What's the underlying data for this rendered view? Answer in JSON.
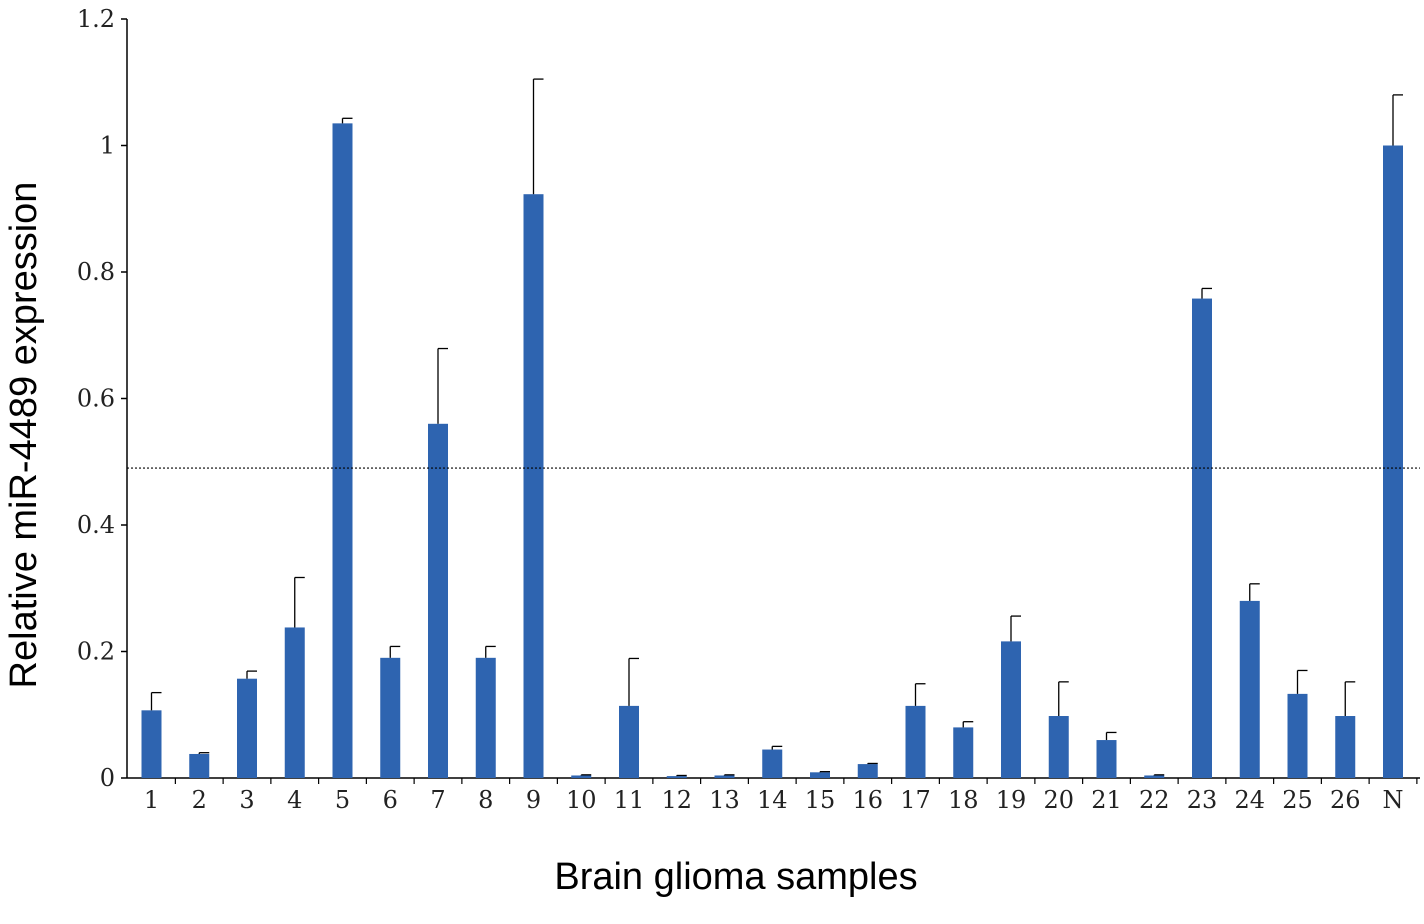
{
  "chart_data": {
    "type": "bar",
    "title": "",
    "xlabel": "Brain glioma samples",
    "ylabel": "Relative miR-4489 expression",
    "ylim": [
      0,
      1.2
    ],
    "yticks": [
      "0",
      "0.2",
      "0.4",
      "0.6",
      "0.8",
      "1",
      "1.2"
    ],
    "categories": [
      "1",
      "2",
      "3",
      "4",
      "5",
      "6",
      "7",
      "8",
      "9",
      "10",
      "11",
      "12",
      "13",
      "14",
      "15",
      "16",
      "17",
      "18",
      "19",
      "20",
      "21",
      "22",
      "23",
      "24",
      "25",
      "26",
      "N"
    ],
    "series": [
      {
        "values": [
          0.107,
          0.038,
          0.157,
          0.238,
          1.035,
          0.19,
          0.56,
          0.19,
          0.923,
          0.004,
          0.114,
          0.003,
          0.004,
          0.045,
          0.009,
          0.022,
          0.114,
          0.08,
          0.216,
          0.098,
          0.06,
          0.004,
          0.758,
          0.28,
          0.133,
          0.098,
          1.0
        ],
        "errors": [
          0.028,
          0.002,
          0.012,
          0.079,
          0.008,
          0.018,
          0.119,
          0.018,
          0.182,
          0.001,
          0.075,
          0.001,
          0.001,
          0.005,
          0.001,
          0.001,
          0.035,
          0.009,
          0.04,
          0.054,
          0.012,
          0.001,
          0.016,
          0.027,
          0.037,
          0.054,
          0.08
        ],
        "color": "#2e64b0"
      }
    ],
    "reference_line": {
      "y": 0.49,
      "style": "dotted"
    },
    "grid": false,
    "legend": "none"
  }
}
